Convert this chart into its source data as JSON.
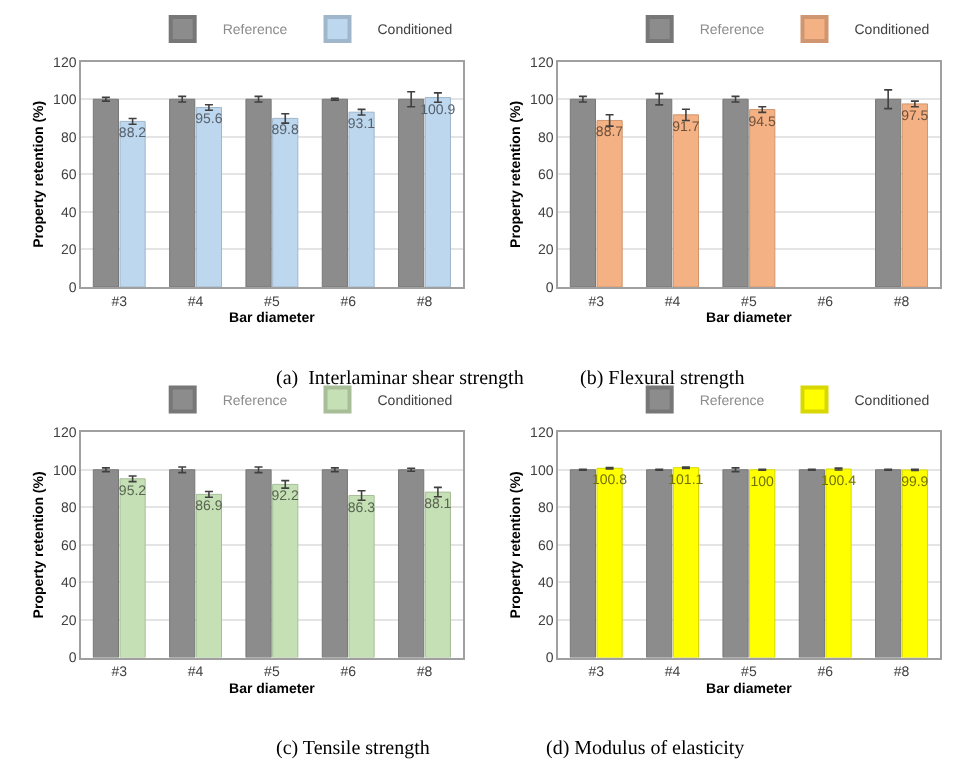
{
  "chart_data": [
    {
      "type": "bar",
      "title": "(a)  Interlaminar shear strength",
      "xlabel": "Bar diameter",
      "ylabel": "Property retention (%)",
      "categories": [
        "#3",
        "#4",
        "#5",
        "#6",
        "#8"
      ],
      "ylim": [
        0,
        120
      ],
      "yticks": [
        0,
        20,
        40,
        60,
        80,
        100,
        120
      ],
      "grid": "y",
      "legend": "top right",
      "series": [
        {
          "name": "Reference",
          "color": "#8c8c8c",
          "values": [
            100,
            100,
            100,
            100,
            100
          ],
          "errors": [
            1,
            1.5,
            1.5,
            0.5,
            4
          ]
        },
        {
          "name": "Conditioned",
          "color": "#bdd7ee",
          "values": [
            88.2,
            95.6,
            89.8,
            93.1,
            100.9
          ],
          "errors": [
            1.5,
            1.5,
            2.5,
            1.5,
            2.5
          ],
          "value_labels": [
            "88.2",
            "95.6",
            "89.8",
            "93.1",
            "100.9"
          ]
        }
      ]
    },
    {
      "type": "bar",
      "title": "(b) Flexural strength",
      "xlabel": "Bar diameter",
      "ylabel": "Property retention (%)",
      "categories": [
        "#3",
        "#4",
        "#5",
        "#6",
        "#8"
      ],
      "ylim": [
        0,
        120
      ],
      "yticks": [
        0,
        20,
        40,
        60,
        80,
        100,
        120
      ],
      "grid": "y",
      "legend": "top right",
      "series": [
        {
          "name": "Reference",
          "color": "#8c8c8c",
          "values": [
            100,
            100,
            100,
            null,
            100
          ],
          "errors": [
            1.5,
            3,
            1.5,
            null,
            5
          ]
        },
        {
          "name": "Conditioned",
          "color": "#f4b183",
          "values": [
            88.7,
            91.7,
            94.5,
            null,
            97.5
          ],
          "errors": [
            3,
            3,
            1.5,
            null,
            1.5
          ],
          "value_labels": [
            "88.7",
            "91.7",
            "94.5",
            null,
            "97.5"
          ]
        }
      ]
    },
    {
      "type": "bar",
      "title": "(c) Tensile strength",
      "xlabel": "Bar diameter",
      "ylabel": "Property retention (%)",
      "categories": [
        "#3",
        "#4",
        "#5",
        "#6",
        "#8"
      ],
      "ylim": [
        0,
        120
      ],
      "yticks": [
        0,
        20,
        40,
        60,
        80,
        100,
        120
      ],
      "grid": "y",
      "legend": "top right",
      "series": [
        {
          "name": "Reference",
          "color": "#8c8c8c",
          "values": [
            100,
            100,
            100,
            100,
            100
          ],
          "errors": [
            1,
            1.5,
            1.5,
            1,
            0.8
          ]
        },
        {
          "name": "Conditioned",
          "color": "#c5e0b4",
          "values": [
            95.2,
            86.9,
            92.2,
            86.3,
            88.1
          ],
          "errors": [
            1.5,
            1.5,
            2,
            2.5,
            2.5
          ],
          "value_labels": [
            "95.2",
            "86.9",
            "92.2",
            "86.3",
            "88.1"
          ]
        }
      ]
    },
    {
      "type": "bar",
      "title": "(d) Modulus of elasticity",
      "xlabel": "Bar diameter",
      "ylabel": "Property retention (%)",
      "categories": [
        "#3",
        "#4",
        "#5",
        "#6",
        "#8"
      ],
      "ylim": [
        0,
        120
      ],
      "yticks": [
        0,
        20,
        40,
        60,
        80,
        100,
        120
      ],
      "grid": "y",
      "legend": "top right",
      "series": [
        {
          "name": "Reference",
          "color": "#8c8c8c",
          "values": [
            100,
            100,
            100,
            100,
            100
          ],
          "errors": [
            0.3,
            0.3,
            1,
            0.3,
            0.3
          ]
        },
        {
          "name": "Conditioned",
          "color": "#ffff00",
          "values": [
            100.8,
            101.1,
            100,
            100.4,
            99.9
          ],
          "errors": [
            0.4,
            0.4,
            0.3,
            0.5,
            0.3
          ],
          "value_labels": [
            "100.8",
            "101.1",
            "100",
            "100.4",
            "99.9"
          ]
        }
      ]
    }
  ]
}
